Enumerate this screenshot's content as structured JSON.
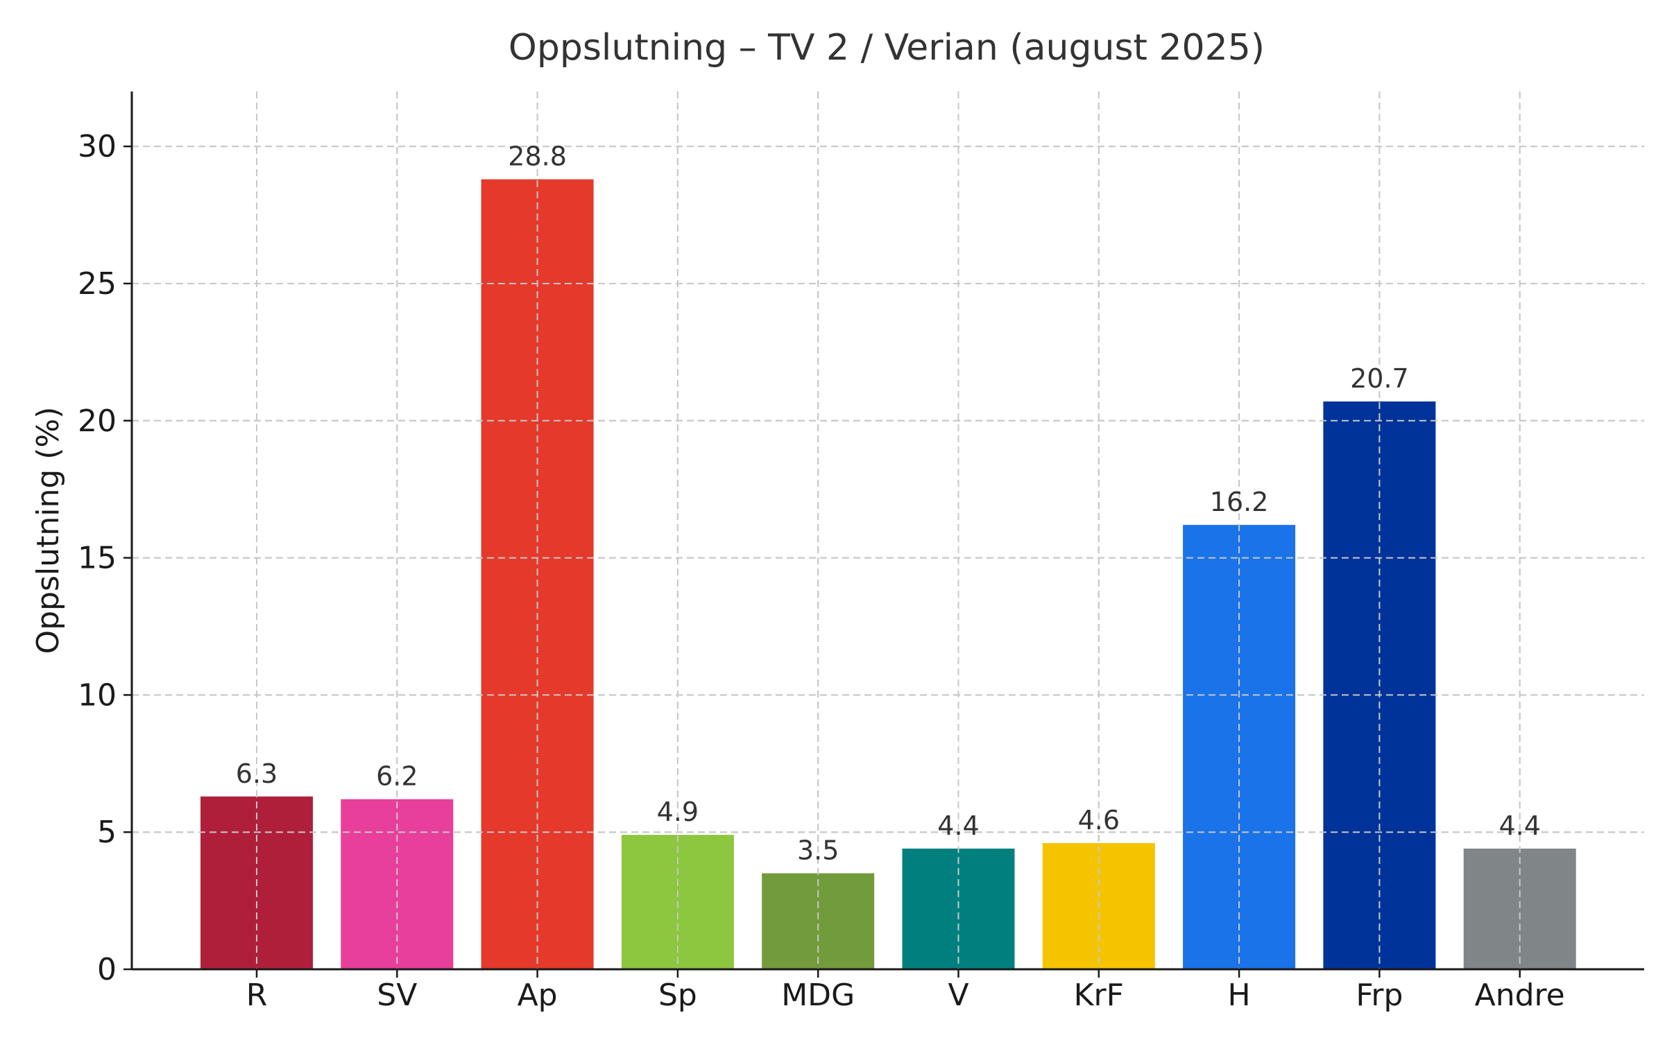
{
  "chart_data": {
    "type": "bar",
    "title": "Oppslutning – TV 2 / Verian (august 2025)",
    "xlabel": "",
    "ylabel": "Oppslutning (%)",
    "ylim": [
      0,
      32
    ],
    "yticks": [
      0,
      5,
      10,
      15,
      20,
      25,
      30
    ],
    "grid": true,
    "categories": [
      "R",
      "SV",
      "Ap",
      "Sp",
      "MDG",
      "V",
      "KrF",
      "H",
      "Frp",
      "Andre"
    ],
    "values": [
      6.3,
      6.2,
      28.8,
      4.9,
      3.5,
      4.4,
      4.6,
      16.2,
      20.7,
      4.4
    ],
    "data_labels": [
      "6.3",
      "6.2",
      "28.8",
      "4.9",
      "3.5",
      "4.4",
      "4.6",
      "16.2",
      "20.7",
      "4.4"
    ],
    "colors": [
      "#b01f3a",
      "#e83e9c",
      "#e4392b",
      "#8dc63f",
      "#729b3c",
      "#007f7f",
      "#f5c400",
      "#1a73e8",
      "#003399",
      "#808588"
    ]
  }
}
